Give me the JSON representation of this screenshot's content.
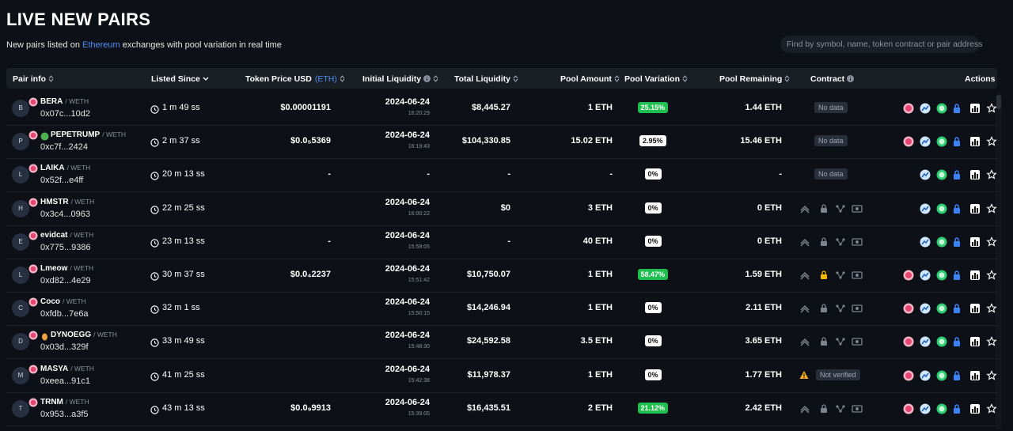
{
  "header": {
    "title": "LIVE NEW PAIRS",
    "subtitle_before": "New pairs listed on",
    "subtitle_link": "Ethereum",
    "subtitle_after": "exchanges with pool variation in real time",
    "search_placeholder": "Find by symbol, name, token contract or pair address"
  },
  "table": {
    "columns": [
      "Pair info",
      "Listed Since",
      "Token Price USD",
      "(ETH)",
      "Initial Liquidity",
      "Total Liquidity",
      "Pool Amount",
      "Pool Variation",
      "Pool Remaining",
      "Contract",
      "Actions"
    ],
    "rows": [
      {
        "avatar": "B",
        "symbol": "BERA",
        "quote": "/ WETH",
        "address": "0x07c...10d2",
        "listed": "1 m 49 ss",
        "price": "$0.00001191",
        "liquidity_date": "2024-06-24",
        "liquidity_time": "16:20:29",
        "total": "$8,445.27",
        "amount": "1 ETH",
        "variation": "25.15%",
        "remaining": "1.44 ETH",
        "contract": "No data"
      },
      {
        "avatar": "P",
        "symbol": "PEPETRUMP",
        "quote": "/ WETH",
        "address": "0xc7f...2424",
        "listed": "2 m 37 ss",
        "price": "$0.0₅5369",
        "liquidity_date": "2024-06-24",
        "liquidity_time": "16:19:43",
        "total": "$104,330.85",
        "amount": "15.02 ETH",
        "variation": "2.95%",
        "remaining": "15.46 ETH",
        "contract": "No data"
      },
      {
        "avatar": "L",
        "symbol": "LAIKA",
        "quote": "/ WETH",
        "address": "0x52f...e4ff",
        "listed": "20 m 13 ss",
        "price": "-",
        "liquidity_date": "-",
        "total": "-",
        "amount": "-",
        "variation": "0%",
        "remaining": "-",
        "contract": "No data"
      },
      {
        "avatar": "H",
        "symbol": "HMSTR",
        "quote": "/ WETH",
        "address": "0x3c4...0963",
        "listed": "22 m 25 ss",
        "liquidity_date": "2024-06-24",
        "liquidity_time": "16:00:22",
        "total": "$0",
        "amount": "3 ETH",
        "variation": "0%",
        "remaining": "0 ETH"
      },
      {
        "avatar": "E",
        "symbol": "evidcat",
        "quote": "/ WETH",
        "address": "0x775...9386",
        "listed": "23 m 13 ss",
        "price": "-",
        "liquidity_date": "2024-06-24",
        "liquidity_time": "15:59:05",
        "total": "-",
        "amount": "40 ETH",
        "variation": "0%",
        "remaining": "0 ETH"
      },
      {
        "avatar": "L",
        "symbol": "Lmeow",
        "quote": "/ WETH",
        "address": "0xd82...4e29",
        "listed": "30 m 37 ss",
        "price": "$0.0₄2237",
        "liquidity_date": "2024-06-24",
        "liquidity_time": "15:51:42",
        "total": "$10,750.07",
        "amount": "1 ETH",
        "variation": "58.47%",
        "remaining": "1.59 ETH"
      },
      {
        "avatar": "C",
        "symbol": "Coco",
        "quote": "/ WETH",
        "address": "0xfdb...7e6a",
        "listed": "32 m 1 ss",
        "liquidity_date": "2024-06-24",
        "liquidity_time": "15:50:15",
        "total": "$14,246.94",
        "amount": "1 ETH",
        "variation": "0%",
        "remaining": "2.11 ETH"
      },
      {
        "avatar": "D",
        "symbol": "DYNOEGG",
        "quote": "/ WETH",
        "address": "0x03d...329f",
        "listed": "33 m 49 ss",
        "liquidity_date": "2024-06-24",
        "liquidity_time": "15:48:30",
        "total": "$24,592.58",
        "amount": "3.5 ETH",
        "variation": "0%",
        "remaining": "3.65 ETH"
      },
      {
        "avatar": "M",
        "symbol": "MASYA",
        "quote": "/ WETH",
        "address": "0xeea...91c1",
        "listed": "41 m 25 ss",
        "liquidity_date": "2024-06-24",
        "liquidity_time": "15:42:38",
        "total": "$11,978.37",
        "amount": "1 ETH",
        "variation": "0%",
        "remaining": "1.77 ETH",
        "contract": "Not verified"
      },
      {
        "avatar": "T",
        "symbol": "TRNM",
        "quote": "/ WETH",
        "address": "0x953...a3f5",
        "listed": "43 m 13 ss",
        "price": "$0.0₉9913",
        "liquidity_date": "2024-06-24",
        "liquidity_time": "15:39:05",
        "total": "$16,435.51",
        "amount": "2 ETH",
        "variation": "21.12%",
        "remaining": "2.42 ETH"
      }
    ]
  }
}
